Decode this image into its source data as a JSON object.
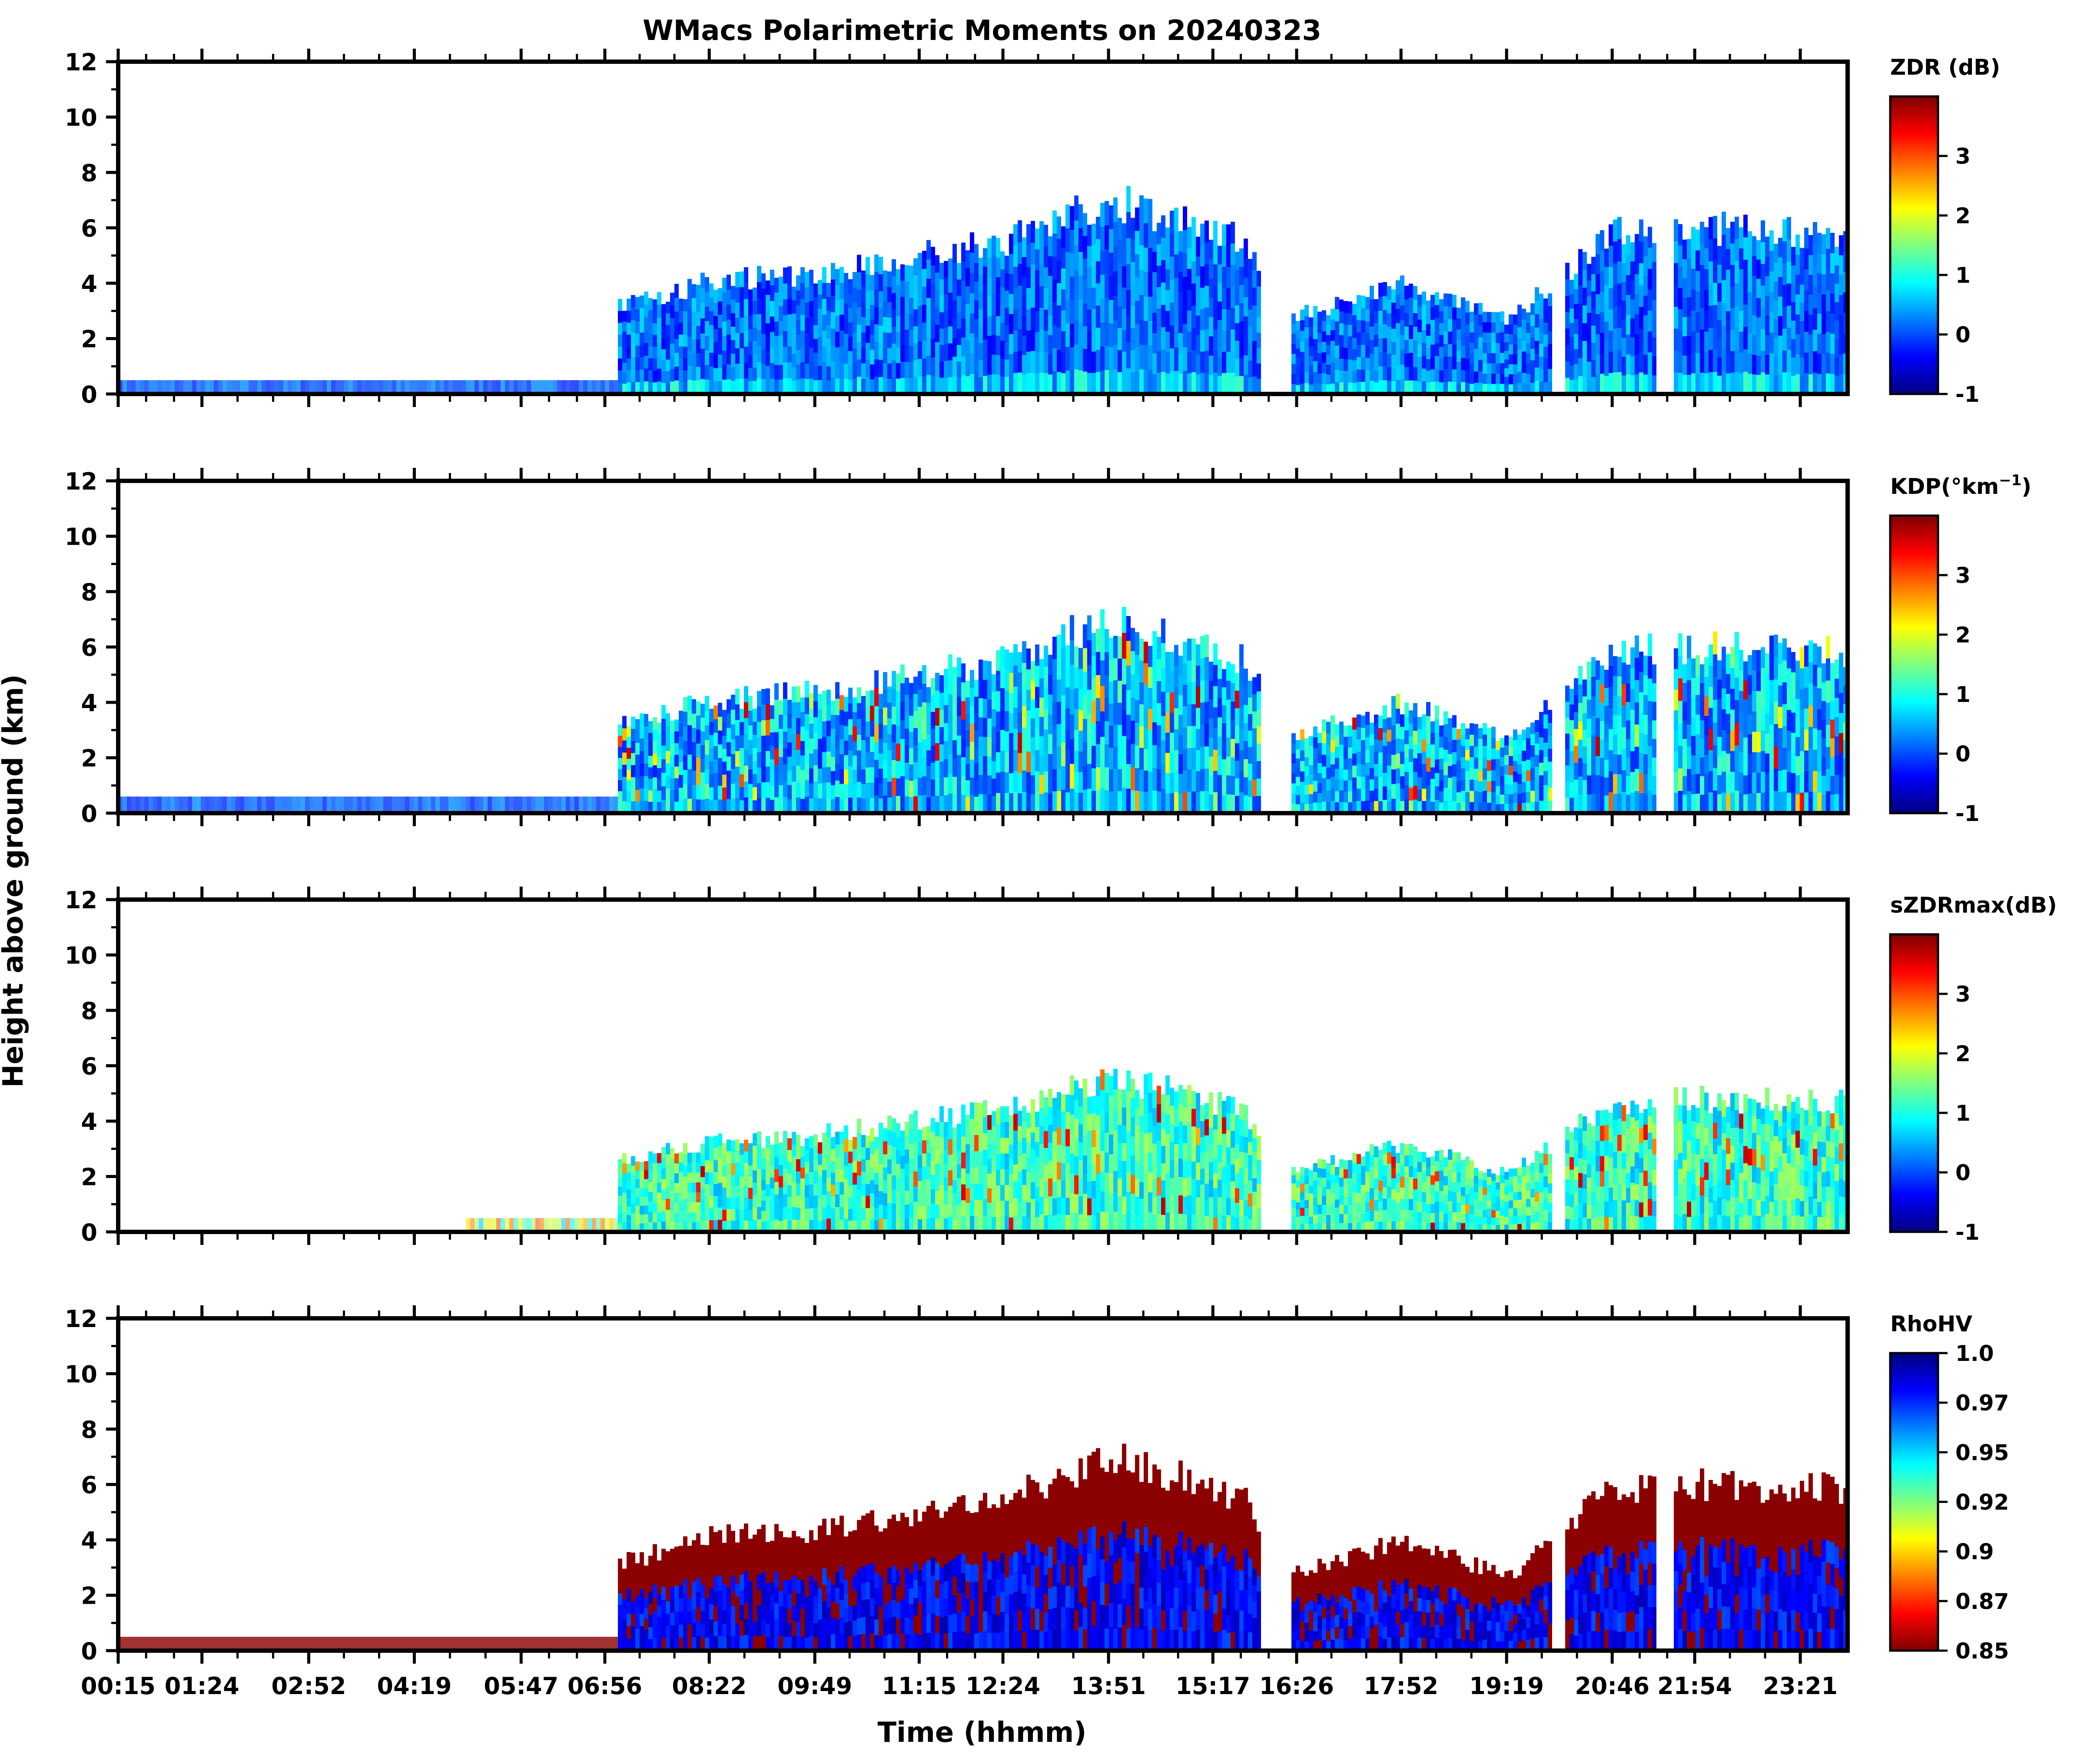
{
  "figure": {
    "title": "WMacs Polarimetric Moments on 20240323",
    "xlabel": "Time (hhmm)",
    "ylabel": "Height above ground (km)"
  },
  "chart_data": {
    "type": "heatmap",
    "x_tick_labels": [
      "00:15",
      "01:24",
      "02:52",
      "04:19",
      "05:47",
      "06:56",
      "08:22",
      "09:49",
      "11:15",
      "12:24",
      "13:51",
      "15:17",
      "16:26",
      "17:52",
      "19:19",
      "20:46",
      "21:54",
      "23:21"
    ],
    "y_ticks": [
      0,
      2,
      4,
      6,
      8,
      10,
      12
    ],
    "ylim": [
      0,
      12
    ],
    "grid": false,
    "colormap": "jet",
    "panels": [
      {
        "id": "zdr",
        "colorbar_label": "ZDR (dB)",
        "colorbar_ticks": [
          "3",
          "2",
          "1",
          "0",
          "-1"
        ],
        "range": [
          -1,
          4
        ],
        "cloud_top_km": [
          [
            "06:56",
            3.2
          ],
          [
            "08:22",
            4.3
          ],
          [
            "09:49",
            4.6
          ],
          [
            "11:15",
            5.3
          ],
          [
            "12:24",
            5.8
          ],
          [
            "13:51",
            7.4
          ],
          [
            "15:17",
            6.2
          ],
          [
            "15:40",
            5.8
          ],
          [
            "16:26",
            3.0
          ],
          [
            "17:52",
            4.2
          ],
          [
            "19:19",
            2.8
          ],
          [
            "20:46",
            6.2
          ],
          [
            "21:54",
            6.3
          ],
          [
            "23:21",
            6.2
          ]
        ]
      },
      {
        "id": "kdp",
        "colorbar_label": "KDP(°km",
        "colorbar_label_sup": "−1",
        "colorbar_label_end": ")",
        "colorbar_ticks": [
          "3",
          "2",
          "1",
          "0",
          "-1"
        ],
        "range": [
          -1,
          4
        ]
      },
      {
        "id": "szdrmax",
        "colorbar_label": "sZDRmax(dB)",
        "colorbar_ticks": [
          "3",
          "2",
          "1",
          "0",
          "-1"
        ],
        "range": [
          -1,
          4
        ]
      },
      {
        "id": "rhohv",
        "colorbar_label": "RhoHV",
        "colorbar_ticks": [
          "1.0",
          "0.97",
          "0.95",
          "0.92",
          "0.9",
          "0.87",
          "0.85"
        ],
        "range": [
          0.85,
          1.0
        ]
      }
    ]
  }
}
